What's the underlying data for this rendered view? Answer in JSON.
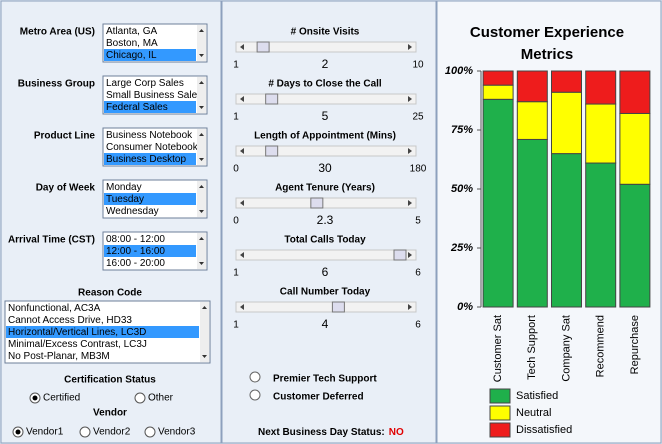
{
  "filters": [
    {
      "label": "Metro Area (US)",
      "options": [
        "Atlanta, GA",
        "Boston, MA",
        "Chicago, IL"
      ],
      "selected": 2
    },
    {
      "label": "Business Group",
      "options": [
        "Large Corp Sales",
        "Small Business Sales",
        "Federal Sales"
      ],
      "selected": 2
    },
    {
      "label": "Product Line",
      "options": [
        "Business Notebook",
        "Consumer Notebook",
        "Business Desktop"
      ],
      "selected": 2
    },
    {
      "label": "Day of Week",
      "options": [
        "Monday",
        "Tuesday",
        "Wednesday"
      ],
      "selected": 1
    },
    {
      "label": "Arrival Time (CST)",
      "options": [
        "08:00 - 12:00",
        "12:00 - 16:00",
        "16:00 - 20:00"
      ],
      "selected": 1
    }
  ],
  "reason_code": {
    "label": "Reason Code",
    "options": [
      "Nonfunctional, AC3A",
      "Cannot Access Drive, HD33",
      "Horizontal/Vertical Lines, LC3D",
      "Minimal/Excess Contrast, LC3J",
      "No Post-Planar, MB3M"
    ],
    "selected": 2
  },
  "certification": {
    "label": "Certification Status",
    "options": [
      "Certified",
      "Other"
    ],
    "selected": 0
  },
  "vendor": {
    "label": "Vendor",
    "options": [
      "Vendor1",
      "Vendor2",
      "Vendor3"
    ],
    "selected": 0
  },
  "sliders": [
    {
      "label": "# Onsite Visits",
      "min": 1,
      "max": 10,
      "value": 2
    },
    {
      "label": "# Days to Close the Call",
      "min": 1,
      "max": 25,
      "value": 5
    },
    {
      "label": "Length of Appointment (Mins)",
      "min": 0,
      "max": 180,
      "value": 30
    },
    {
      "label": "Agent Tenure (Years)",
      "min": 0,
      "max": 5,
      "value": 2.3
    },
    {
      "label": "Total Calls Today",
      "min": 1,
      "max": 6,
      "value": 6
    },
    {
      "label": "Call Number Today",
      "min": 1,
      "max": 6,
      "value": 4
    }
  ],
  "checkboxes": [
    "Premier Tech Support",
    "Customer Deferred"
  ],
  "status": {
    "label": "Next Business Day Status:",
    "value": "NO"
  },
  "chart_data": {
    "type": "stacked-bar",
    "title": "Customer Experience Metrics",
    "categories": [
      "Customer Sat",
      "Tech Support",
      "Company Sat",
      "Recommend",
      "Repurchase"
    ],
    "series": [
      {
        "name": "Satisfied",
        "color": "#1fb04b",
        "values": [
          88,
          71,
          65,
          61,
          52
        ]
      },
      {
        "name": "Neutral",
        "color": "#ffff00",
        "values": [
          6,
          16,
          26,
          25,
          30
        ]
      },
      {
        "name": "Dissatisfied",
        "color": "#ee1c1c",
        "values": [
          6,
          13,
          9,
          14,
          18
        ]
      }
    ],
    "ylim": [
      0,
      100
    ],
    "yticks": [
      {
        "value": 0,
        "label": "0%"
      },
      {
        "value": 25,
        "label": "25%"
      },
      {
        "value": 50,
        "label": "50%"
      },
      {
        "value": 75,
        "label": "75%"
      },
      {
        "value": 100,
        "label": "100%"
      }
    ]
  }
}
